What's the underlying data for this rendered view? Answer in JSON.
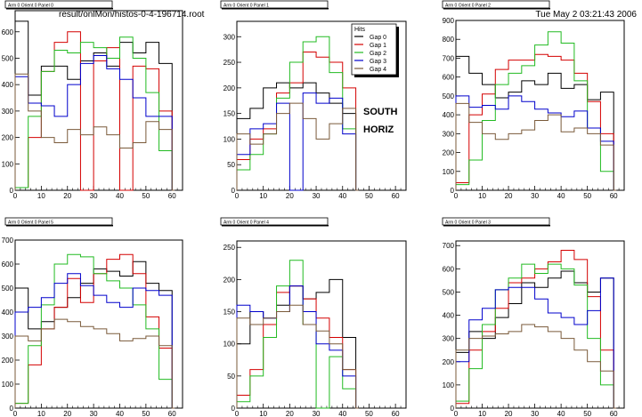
{
  "header": {
    "file": "result/onlMon/histos-0-4-196714.root",
    "date": "Tue May  2 03:21:43 2006"
  },
  "annotation": {
    "line1": "SOUTH",
    "line2": "HORIZ"
  },
  "legend": {
    "title": "Hits",
    "entries": [
      "Gap 0",
      "Gap 1",
      "Gap 2",
      "Gap 3",
      "Gap 4"
    ]
  },
  "colors": [
    "#000000",
    "#d40000",
    "#22bb22",
    "#0000cc",
    "#7a5a3a"
  ],
  "chart_data": [
    {
      "type": "line",
      "title": "Arm 0 Orient 0 Panel 0",
      "xlim": [
        0,
        64
      ],
      "ylim": [
        0,
        680
      ],
      "xticks": [
        0,
        10,
        20,
        30,
        40,
        50,
        60
      ],
      "yticks": [
        0,
        100,
        200,
        300,
        400,
        500,
        600
      ],
      "x": [
        0,
        5,
        10,
        15,
        20,
        25,
        30,
        35,
        40,
        45,
        50,
        55,
        60
      ],
      "series": [
        {
          "name": "Gap 0",
          "values": [
            640,
            360,
            470,
            470,
            420,
            490,
            520,
            470,
            560,
            520,
            560,
            480,
            0
          ]
        },
        {
          "name": "Gap 1",
          "values": [
            10,
            200,
            450,
            560,
            600,
            0,
            490,
            540,
            0,
            470,
            460,
            300,
            0
          ]
        },
        {
          "name": "Gap 2",
          "values": [
            10,
            280,
            450,
            530,
            520,
            560,
            540,
            500,
            580,
            500,
            370,
            150,
            0
          ]
        },
        {
          "name": "Gap 3",
          "values": [
            430,
            330,
            320,
            280,
            400,
            480,
            510,
            460,
            420,
            350,
            280,
            280,
            0
          ]
        },
        {
          "name": "Gap 4",
          "values": [
            440,
            300,
            200,
            180,
            230,
            210,
            240,
            210,
            160,
            180,
            260,
            230,
            0
          ]
        }
      ]
    },
    {
      "type": "line",
      "title": "Arm 0 Orient 0 Panel 1",
      "xlim": [
        0,
        64
      ],
      "ylim": [
        0,
        330
      ],
      "xticks": [
        0,
        10,
        20,
        30,
        40,
        50,
        60
      ],
      "yticks": [
        0,
        50,
        100,
        150,
        200,
        250,
        300
      ],
      "x": [
        0,
        5,
        10,
        15,
        20,
        25,
        30,
        35,
        40,
        45
      ],
      "series": [
        {
          "name": "Gap 0",
          "values": [
            140,
            160,
            200,
            210,
            200,
            210,
            190,
            170,
            150,
            0
          ]
        },
        {
          "name": "Gap 1",
          "values": [
            60,
            100,
            120,
            190,
            210,
            270,
            260,
            250,
            200,
            0
          ]
        },
        {
          "name": "Gap 2",
          "values": [
            40,
            70,
            110,
            180,
            250,
            290,
            300,
            230,
            120,
            0
          ]
        },
        {
          "name": "Gap 3",
          "values": [
            70,
            120,
            130,
            170,
            0,
            190,
            170,
            180,
            110,
            0
          ]
        },
        {
          "name": "Gap 4",
          "values": [
            110,
            90,
            110,
            150,
            170,
            140,
            100,
            130,
            160,
            0
          ]
        }
      ]
    },
    {
      "type": "line",
      "title": "Arm 0 Orient 0 Panel 2",
      "xlim": [
        0,
        64
      ],
      "ylim": [
        0,
        900
      ],
      "xticks": [
        0,
        10,
        20,
        30,
        40,
        50,
        60
      ],
      "yticks": [
        0,
        100,
        200,
        300,
        400,
        500,
        600,
        700,
        800,
        900
      ],
      "x": [
        0,
        5,
        10,
        15,
        20,
        25,
        30,
        35,
        40,
        45,
        50,
        55,
        60
      ],
      "series": [
        {
          "name": "Gap 0",
          "values": [
            710,
            620,
            560,
            490,
            520,
            580,
            560,
            620,
            540,
            560,
            480,
            520,
            0
          ]
        },
        {
          "name": "Gap 1",
          "values": [
            40,
            400,
            510,
            640,
            690,
            690,
            720,
            710,
            690,
            620,
            470,
            300,
            0
          ]
        },
        {
          "name": "Gap 2",
          "values": [
            30,
            160,
            370,
            560,
            620,
            660,
            770,
            840,
            780,
            580,
            330,
            100,
            0
          ]
        },
        {
          "name": "Gap 3",
          "values": [
            500,
            440,
            450,
            430,
            500,
            470,
            430,
            410,
            390,
            420,
            330,
            260,
            0
          ]
        },
        {
          "name": "Gap 4",
          "values": [
            460,
            360,
            300,
            270,
            300,
            320,
            370,
            400,
            310,
            330,
            300,
            240,
            0
          ]
        }
      ]
    },
    {
      "type": "line",
      "title": "Arm 0 Orient 0 Panel 5",
      "xlim": [
        0,
        64
      ],
      "ylim": [
        0,
        700
      ],
      "xticks": [
        0,
        10,
        20,
        30,
        40,
        50,
        60
      ],
      "yticks": [
        0,
        100,
        200,
        300,
        400,
        500,
        600,
        700
      ],
      "x": [
        0,
        5,
        10,
        15,
        20,
        25,
        30,
        35,
        40,
        45,
        50,
        55,
        60
      ],
      "series": [
        {
          "name": "Gap 0",
          "values": [
            500,
            330,
            360,
            420,
            460,
            520,
            580,
            570,
            550,
            610,
            520,
            490,
            0
          ]
        },
        {
          "name": "Gap 1",
          "values": [
            20,
            180,
            330,
            420,
            540,
            440,
            560,
            620,
            640,
            560,
            380,
            250,
            0
          ]
        },
        {
          "name": "Gap 2",
          "values": [
            20,
            260,
            430,
            600,
            640,
            630,
            560,
            530,
            500,
            430,
            330,
            120,
            0
          ]
        },
        {
          "name": "Gap 3",
          "values": [
            400,
            420,
            460,
            520,
            560,
            510,
            470,
            440,
            420,
            500,
            490,
            470,
            0
          ]
        },
        {
          "name": "Gap 4",
          "values": [
            300,
            280,
            330,
            370,
            360,
            340,
            330,
            310,
            280,
            290,
            300,
            260,
            0
          ]
        }
      ]
    },
    {
      "type": "line",
      "title": "Arm 0 Orient 0 Panel 4",
      "xlim": [
        0,
        64
      ],
      "ylim": [
        0,
        260
      ],
      "xticks": [
        0,
        10,
        20,
        30,
        40,
        50,
        60
      ],
      "yticks": [
        0,
        50,
        100,
        150,
        200,
        250
      ],
      "x": [
        0,
        5,
        10,
        15,
        20,
        25,
        30,
        35,
        40,
        45
      ],
      "series": [
        {
          "name": "Gap 0",
          "values": [
            100,
            150,
            140,
            160,
            190,
            170,
            180,
            200,
            110,
            0
          ]
        },
        {
          "name": "Gap 1",
          "values": [
            20,
            60,
            130,
            180,
            190,
            170,
            140,
            110,
            60,
            0
          ]
        },
        {
          "name": "Gap 2",
          "values": [
            10,
            50,
            110,
            190,
            230,
            130,
            0,
            80,
            30,
            0
          ]
        },
        {
          "name": "Gap 3",
          "values": [
            160,
            150,
            140,
            150,
            190,
            150,
            100,
            90,
            50,
            0
          ]
        },
        {
          "name": "Gap 4",
          "values": [
            140,
            130,
            140,
            150,
            160,
            130,
            120,
            100,
            60,
            0
          ]
        }
      ]
    },
    {
      "type": "line",
      "title": "Arm 0 Orient 0 Panel 3",
      "xlim": [
        0,
        64
      ],
      "ylim": [
        0,
        720
      ],
      "xticks": [
        0,
        10,
        20,
        30,
        40,
        50,
        60
      ],
      "yticks": [
        0,
        100,
        200,
        300,
        400,
        500,
        600,
        700
      ],
      "x": [
        0,
        5,
        10,
        15,
        20,
        25,
        30,
        35,
        40,
        45,
        50,
        55,
        60
      ],
      "series": [
        {
          "name": "Gap 0",
          "values": [
            240,
            330,
            300,
            390,
            450,
            540,
            520,
            560,
            590,
            540,
            500,
            560,
            0
          ]
        },
        {
          "name": "Gap 1",
          "values": [
            20,
            250,
            330,
            430,
            540,
            560,
            600,
            630,
            680,
            640,
            480,
            250,
            0
          ]
        },
        {
          "name": "Gap 2",
          "values": [
            30,
            170,
            360,
            510,
            560,
            620,
            580,
            620,
            600,
            530,
            300,
            100,
            0
          ]
        },
        {
          "name": "Gap 3",
          "values": [
            200,
            380,
            430,
            510,
            520,
            520,
            470,
            410,
            390,
            360,
            420,
            560,
            0
          ]
        },
        {
          "name": "Gap 4",
          "values": [
            250,
            300,
            310,
            320,
            330,
            360,
            350,
            330,
            300,
            250,
            200,
            160,
            0
          ]
        }
      ]
    }
  ]
}
